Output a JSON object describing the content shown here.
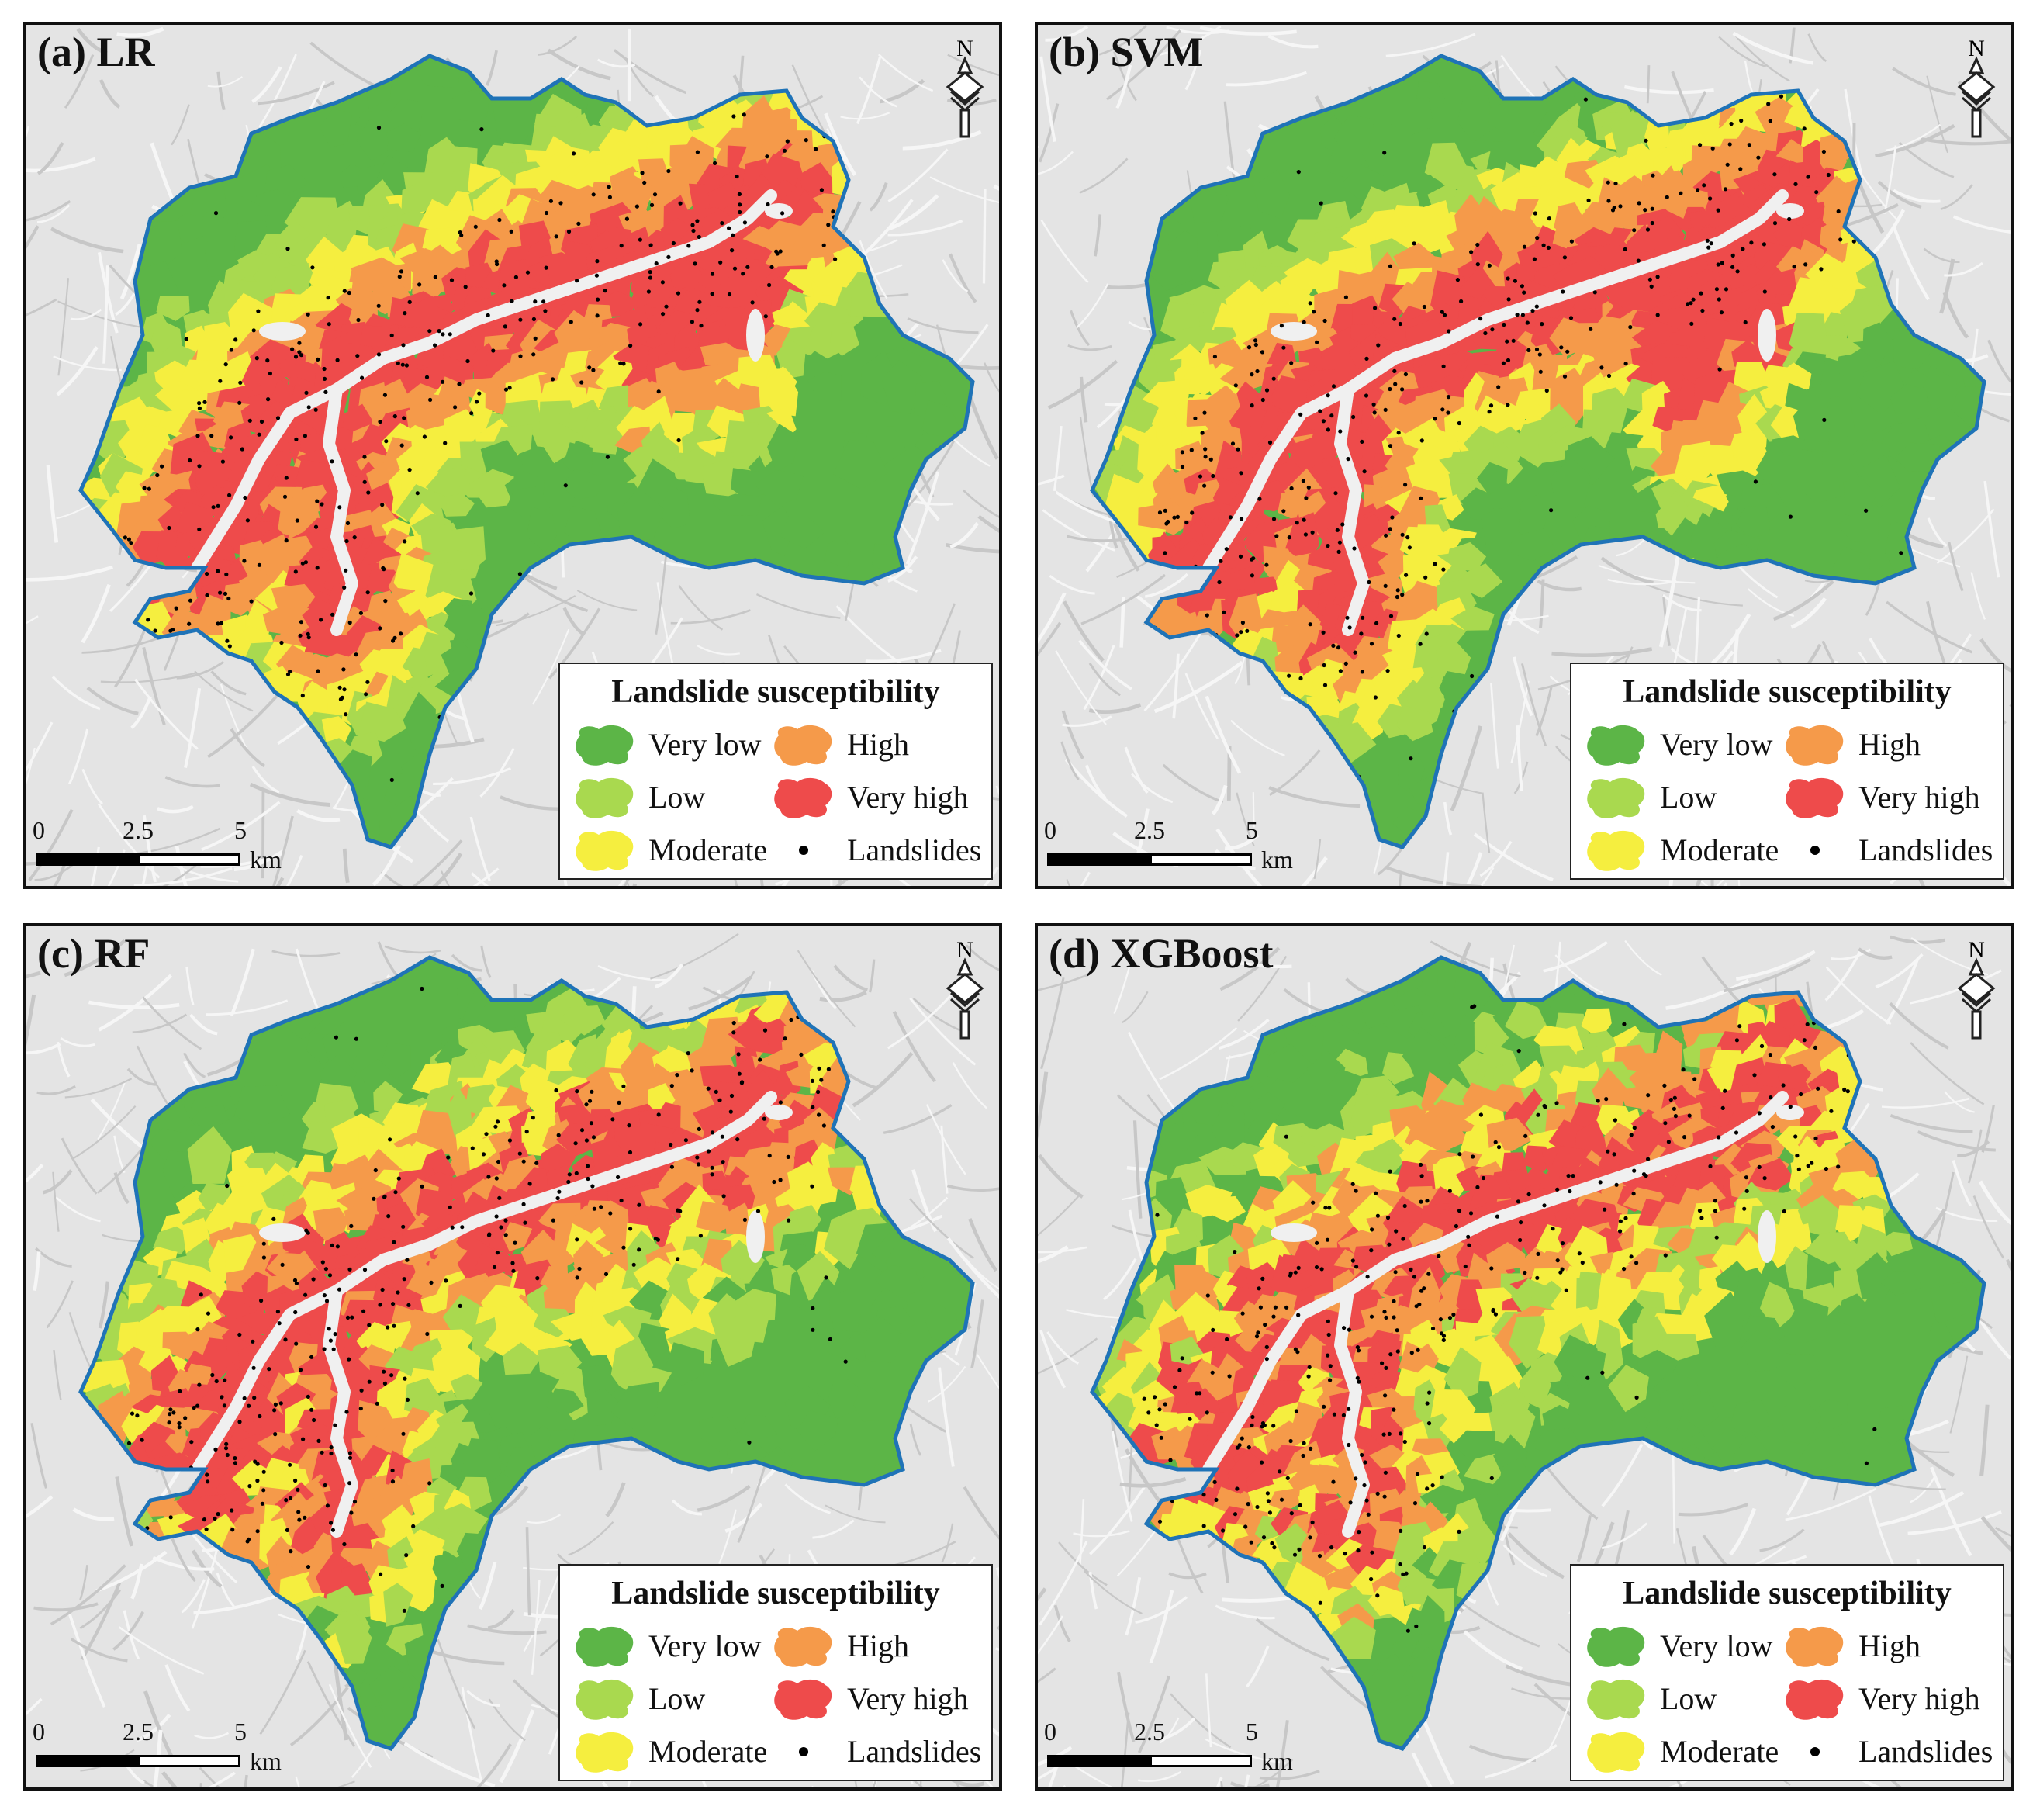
{
  "panels": [
    {
      "title": "(a) LR",
      "style": "lr"
    },
    {
      "title": "(b) SVM",
      "style": "svm"
    },
    {
      "title": "(c) RF",
      "style": "rf"
    },
    {
      "title": "(d) XGBoost",
      "style": "xgb"
    }
  ],
  "north_label": "N",
  "legend": {
    "title": "Landslide susceptibility",
    "items": [
      {
        "label": "Very low",
        "color": "#5cb547",
        "kind": "blob"
      },
      {
        "label": "High",
        "color": "#f59a4a",
        "kind": "blob"
      },
      {
        "label": "Low",
        "color": "#a9d94f",
        "kind": "blob"
      },
      {
        "label": "Very high",
        "color": "#ee4b4b",
        "kind": "blob"
      },
      {
        "label": "Moderate",
        "color": "#f5ee3f",
        "kind": "blob"
      },
      {
        "label": "Landslides",
        "color": "#000000",
        "kind": "dot"
      }
    ]
  },
  "scale": {
    "ticks": [
      "0",
      "2.5",
      "5"
    ],
    "unit": "km"
  },
  "colors": {
    "very_low": "#5cb547",
    "low": "#a9d94f",
    "moderate": "#f5ee3f",
    "high": "#f59a4a",
    "very_high": "#ee4b4b",
    "boundary": "#1f73b7",
    "river": "#f0f0f0",
    "hillshade": "#e6e6e6"
  }
}
